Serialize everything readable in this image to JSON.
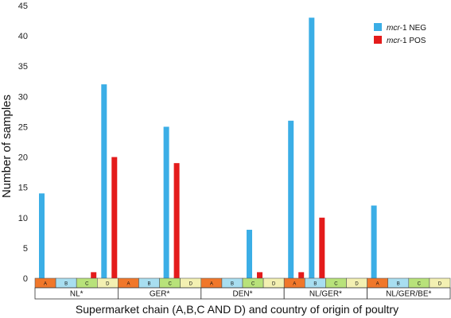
{
  "chart_data": {
    "type": "bar",
    "xlabel": "Supermarket chain (A,B,C AND D) and country of origin of poultry",
    "ylabel": "Number of samples",
    "ylim": [
      0,
      45
    ],
    "yticks": [
      0,
      5,
      10,
      15,
      20,
      25,
      30,
      35,
      40,
      45
    ],
    "grid": false,
    "legend_position": "top-right",
    "groups": [
      "NL*",
      "GER*",
      "DEN*",
      "NL/GER*",
      "NL/GER/BE*"
    ],
    "chains": [
      "A",
      "B",
      "C",
      "D"
    ],
    "chain_colors": [
      "#f0772a",
      "#a8def0",
      "#b8e27a",
      "#f3f0b2"
    ],
    "series": [
      {
        "name_italic": "mcr",
        "name_rest": "-1 NEG",
        "color": "#3baee6",
        "values": [
          [
            14,
            0,
            0,
            32
          ],
          [
            0,
            0,
            25,
            0
          ],
          [
            0,
            0,
            8,
            0
          ],
          [
            26,
            43,
            0,
            0
          ],
          [
            12,
            0,
            0,
            0
          ]
        ]
      },
      {
        "name_italic": "mcr",
        "name_rest": "-1 POS",
        "color": "#e41b1b",
        "values": [
          [
            0,
            0,
            1,
            20
          ],
          [
            0,
            0,
            19,
            0
          ],
          [
            0,
            0,
            1,
            0
          ],
          [
            1,
            10,
            0,
            0
          ],
          [
            0,
            0,
            0,
            0
          ]
        ]
      }
    ]
  }
}
